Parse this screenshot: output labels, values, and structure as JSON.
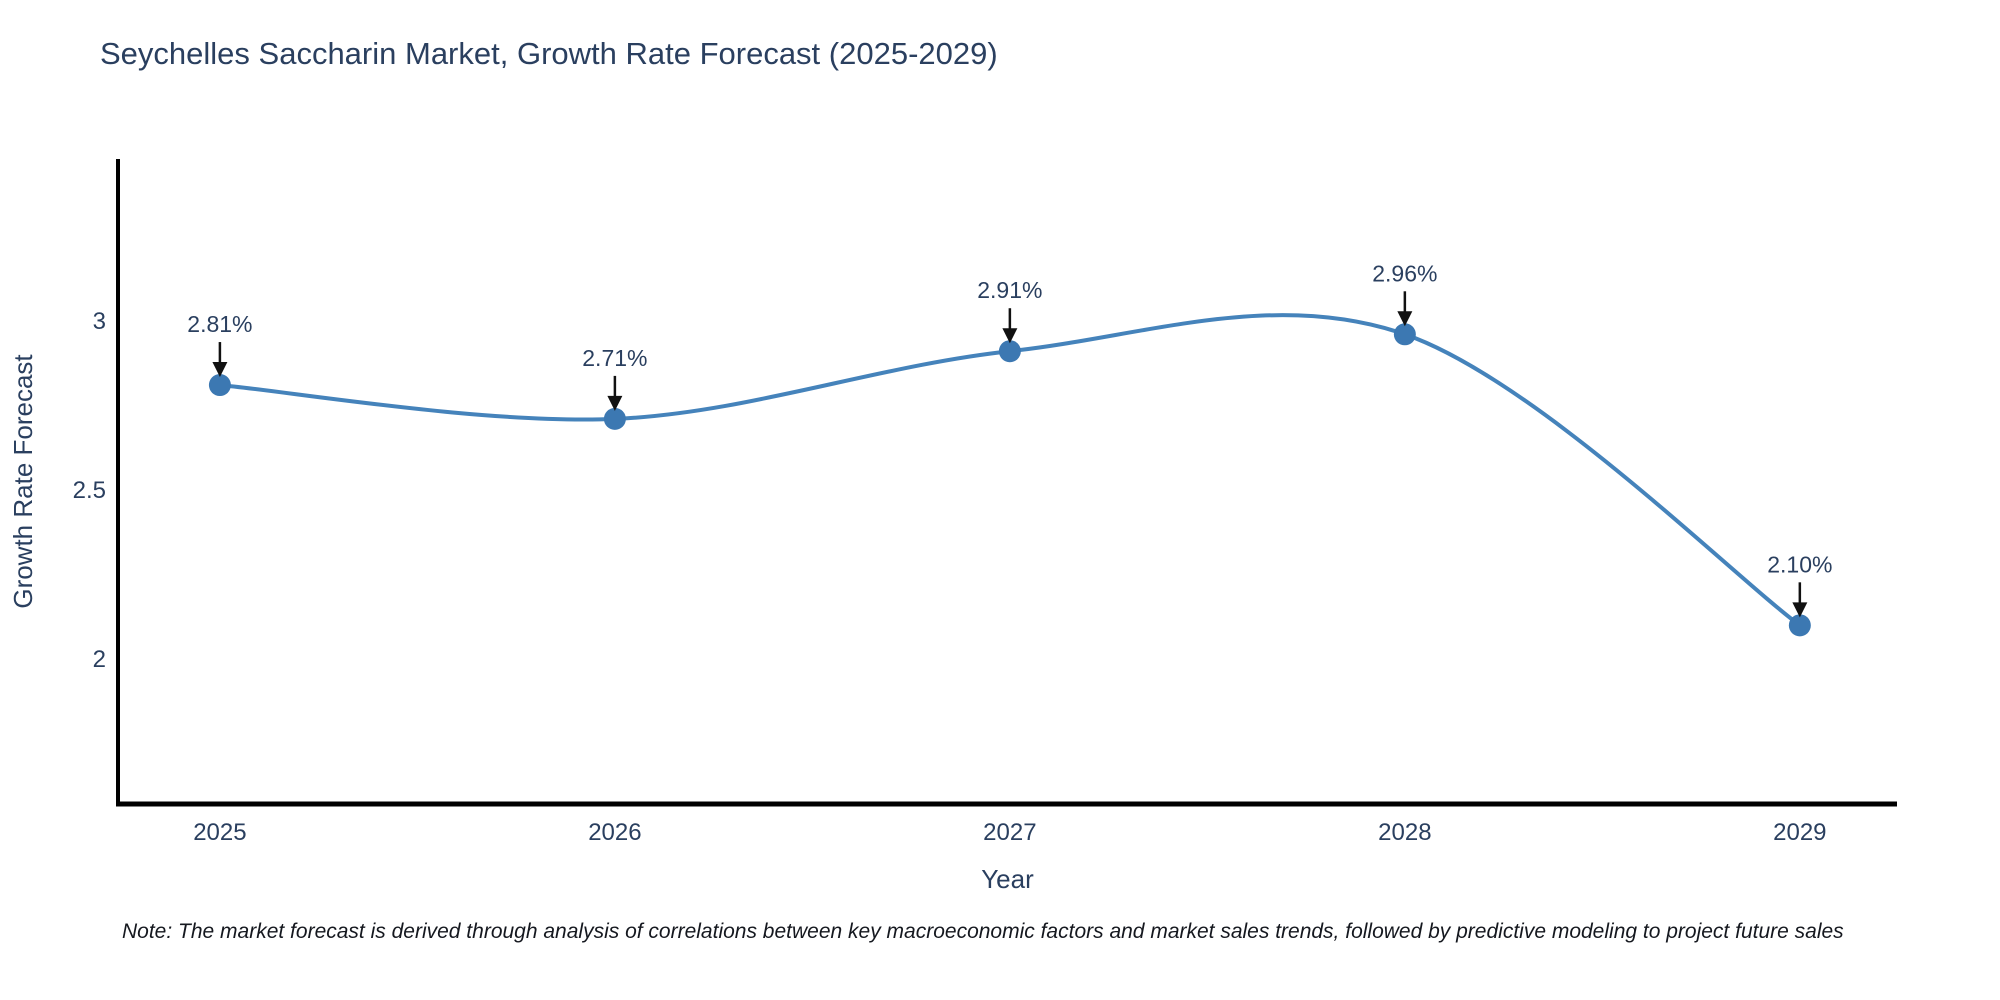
{
  "page": {
    "note": "Note: The market forecast is derived through analysis of correlations between key macroeconomic factors and market sales trends, followed by predictive modeling to project future sales"
  },
  "chart_data": {
    "type": "line",
    "line_shape": "spline",
    "title": "Seychelles Saccharin Market, Growth Rate Forecast (2025-2029)",
    "xlabel": "Year",
    "ylabel": "Growth Rate Forecast",
    "x": [
      2025,
      2026,
      2027,
      2028,
      2029
    ],
    "values": [
      2.81,
      2.71,
      2.91,
      2.96,
      2.1
    ],
    "point_labels": [
      "2.81%",
      "2.71%",
      "2.91%",
      "2.96%",
      "2.10%"
    ],
    "xtick_labels": [
      "2025",
      "2026",
      "2027",
      "2028",
      "2029"
    ],
    "ytick_values": [
      2,
      2.5,
      3
    ],
    "ytick_labels": [
      "2",
      "2.5",
      "3"
    ],
    "xlim": [
      2024.742,
      2029.246
    ],
    "ylim": [
      1.572,
      3.478
    ],
    "grid": false,
    "legend": "none",
    "colors": {
      "line": "#4583bb",
      "marker": "#3c78b2",
      "axis": "#000000",
      "text": "#2a3f5f",
      "arrow": "#111111"
    }
  }
}
